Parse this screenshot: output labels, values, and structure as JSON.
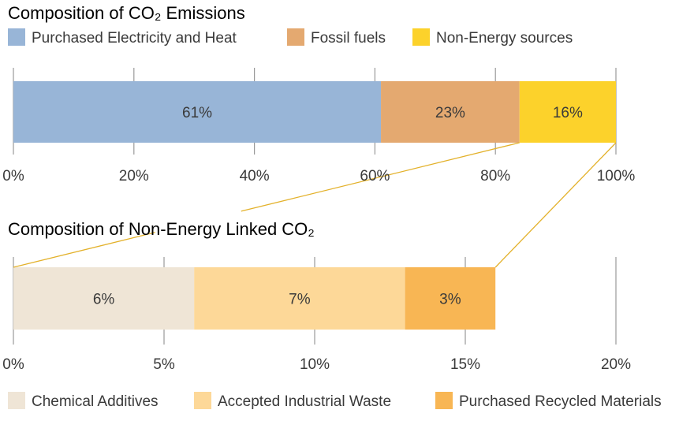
{
  "chart_data": [
    {
      "type": "bar",
      "orientation": "horizontal",
      "stacked": true,
      "title": "Composition of CO₂ Emissions",
      "xlim": [
        0,
        100
      ],
      "ticks": [
        "0%",
        "20%",
        "40%",
        "60%",
        "80%",
        "100%"
      ],
      "tick_values": [
        0,
        20,
        40,
        60,
        80,
        100
      ],
      "grid": true,
      "legend_position": "top",
      "segments": [
        {
          "name": "Purchased Electricity and Heat",
          "value": 61,
          "label": "61%",
          "color": "#98b5d7"
        },
        {
          "name": "Fossil fuels",
          "value": 23,
          "label": "23%",
          "color": "#e4a970"
        },
        {
          "name": "Non-Energy sources",
          "value": 16,
          "label": "16%",
          "color": "#fcd22b"
        }
      ]
    },
    {
      "type": "bar",
      "orientation": "horizontal",
      "stacked": true,
      "title": "Composition of Non-Energy Linked CO₂",
      "xlim": [
        0,
        20
      ],
      "ticks": [
        "0%",
        "5%",
        "10%",
        "15%",
        "20%"
      ],
      "tick_values": [
        0,
        5,
        10,
        15,
        20
      ],
      "grid": true,
      "legend_position": "bottom",
      "segments": [
        {
          "name": "Chemical Additives",
          "value": 6,
          "label": "6%",
          "color": "#efe5d6"
        },
        {
          "name": "Accepted Industrial Waste",
          "value": 7,
          "label": "7%",
          "color": "#fdd898"
        },
        {
          "name": "Purchased Recycled Materials",
          "value": 3,
          "label": "3%",
          "color": "#f8b654"
        }
      ]
    }
  ],
  "colors": {
    "connector": "#e3b12a",
    "grid": "#9a9a9a"
  }
}
